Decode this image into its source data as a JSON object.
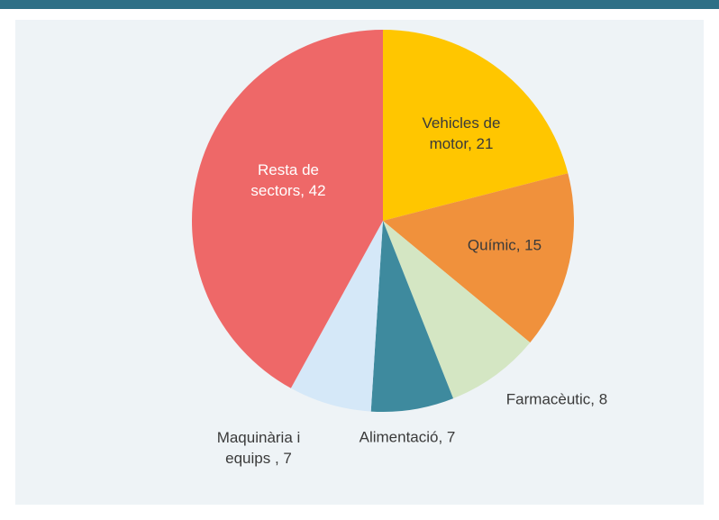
{
  "chart_data": {
    "type": "pie",
    "labels": [
      "Vehicles de motor, 21",
      "Químic, 15",
      "Farmacèutic, 8",
      "Alimentació, 7",
      "Maquinària i equips , 7",
      "Resta de sectors, 42"
    ],
    "values": [
      21,
      15,
      8,
      7,
      7,
      42
    ],
    "colors": [
      "#ffc600",
      "#f0913c",
      "#d4e6c3",
      "#3e8a9e",
      "#d5e8f8",
      "#ee6868"
    ],
    "label_colors": [
      "#3a3a3a",
      "#3a3a3a",
      "#3a3a3a",
      "#3a3a3a",
      "#3a3a3a",
      "#ffffff"
    ]
  }
}
